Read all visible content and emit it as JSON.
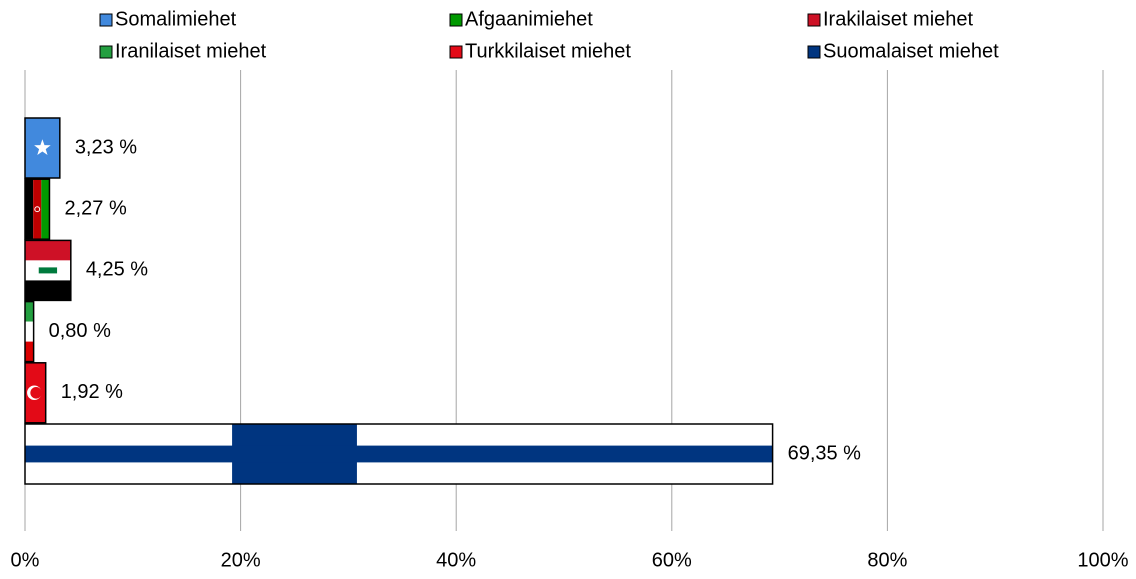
{
  "chart_data": {
    "type": "bar",
    "orientation": "horizontal",
    "series": [
      {
        "name": "Somalimiehet",
        "color": "#4189dd",
        "values": [
          3.23
        ],
        "value_labels": [
          "3,23 %"
        ]
      },
      {
        "name": "Afgaanimiehet",
        "color": "#009900",
        "values": [
          2.27
        ],
        "value_labels": [
          "2,27 %"
        ]
      },
      {
        "name": "Irakilaiset miehet",
        "color": "#ce1126",
        "values": [
          4.25
        ],
        "value_labels": [
          "4,25 %"
        ]
      },
      {
        "name": "Iranilaiset miehet",
        "color": "#239f40",
        "values": [
          0.8
        ],
        "value_labels": [
          "0,80 %"
        ]
      },
      {
        "name": "Turkkilaiset miehet",
        "color": "#e30a17",
        "values": [
          1.92
        ],
        "value_labels": [
          "1,92 %"
        ]
      },
      {
        "name": "Suomalaiset miehet",
        "color": "#003580",
        "values": [
          69.35
        ],
        "value_labels": [
          "69,35 %"
        ]
      }
    ],
    "xlim": [
      0,
      100
    ],
    "xticks": [
      {
        "value": 0,
        "label": "0%"
      },
      {
        "value": 20,
        "label": "20%"
      },
      {
        "value": 40,
        "label": "40%"
      },
      {
        "value": 60,
        "label": "60%"
      },
      {
        "value": 80,
        "label": "80%"
      },
      {
        "value": 100,
        "label": "100%"
      }
    ],
    "grid": true,
    "legend": "top"
  }
}
